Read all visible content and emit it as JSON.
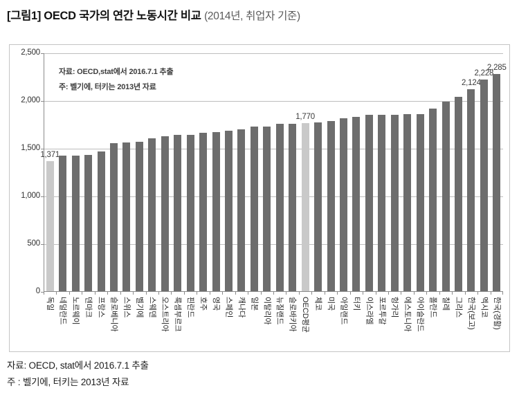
{
  "title": {
    "main": "[그림1] OECD 국가의 연간 노동시간 비교",
    "sub": "(2014년, 취업자 기준)"
  },
  "chart_data": {
    "type": "bar",
    "title": "OECD 국가의 연간 노동시간 비교 (2014년, 취업자 기준)",
    "categories": [
      "독일",
      "네덜란드",
      "노르웨이",
      "덴마크",
      "프랑스",
      "슬로베니아",
      "스위스",
      "벨기에",
      "스웨덴",
      "오스트리아",
      "룩셈부르크",
      "핀란드",
      "호주",
      "영국",
      "스페인",
      "캐나다",
      "일본",
      "이탈리아",
      "뉴질랜드",
      "슬로바키아",
      "OECD평균",
      "체코",
      "미국",
      "아일랜드",
      "터키",
      "이스라엘",
      "포르투갈",
      "헝가리",
      "에스토니아",
      "아이슬란드",
      "폴란드",
      "칠레",
      "그리스",
      "한국(보고)",
      "멕시코",
      "한국(경활)"
    ],
    "values": [
      1371,
      1425,
      1427,
      1436,
      1473,
      1561,
      1568,
      1575,
      1609,
      1629,
      1643,
      1645,
      1664,
      1677,
      1689,
      1704,
      1729,
      1734,
      1762,
      1763,
      1770,
      1776,
      1789,
      1821,
      1832,
      1853,
      1857,
      1858,
      1859,
      1864,
      1923,
      1990,
      2042,
      2124,
      2228,
      2285
    ],
    "xlabel": "",
    "ylabel": "",
    "ylim": [
      0,
      2500
    ],
    "yticks": [
      0,
      500,
      1000,
      1500,
      2000,
      2500
    ],
    "ytick_labels": [
      "0",
      "500",
      "1,000",
      "1,500",
      "2,000",
      "2,500"
    ],
    "grid": true,
    "legend": false,
    "highlight_indices": [
      0,
      20
    ],
    "bar_labels": [
      {
        "index": 0,
        "text": "1,371"
      },
      {
        "index": 20,
        "text": "1,770"
      },
      {
        "index": 33,
        "text": "2,124"
      },
      {
        "index": 34,
        "text": "2,228"
      },
      {
        "index": 35,
        "text": "2,285"
      }
    ],
    "annotation": {
      "line1": "자료: OECD,stat에서 2016.7.1 추출",
      "line2": "주: 벨기에, 터키는 2013년 자료"
    },
    "colors": {
      "bar": "#6d6d6d",
      "bar_highlight": "#c9c9c9",
      "grid": "#bdbdbd",
      "axis": "#8a8a8a",
      "box_border": "#c4c4c4"
    }
  },
  "footer": {
    "source": "자료: OECD, stat에서 2016.7.1 추출",
    "note": "주 : 벨기에, 터키는 2013년 자료"
  }
}
